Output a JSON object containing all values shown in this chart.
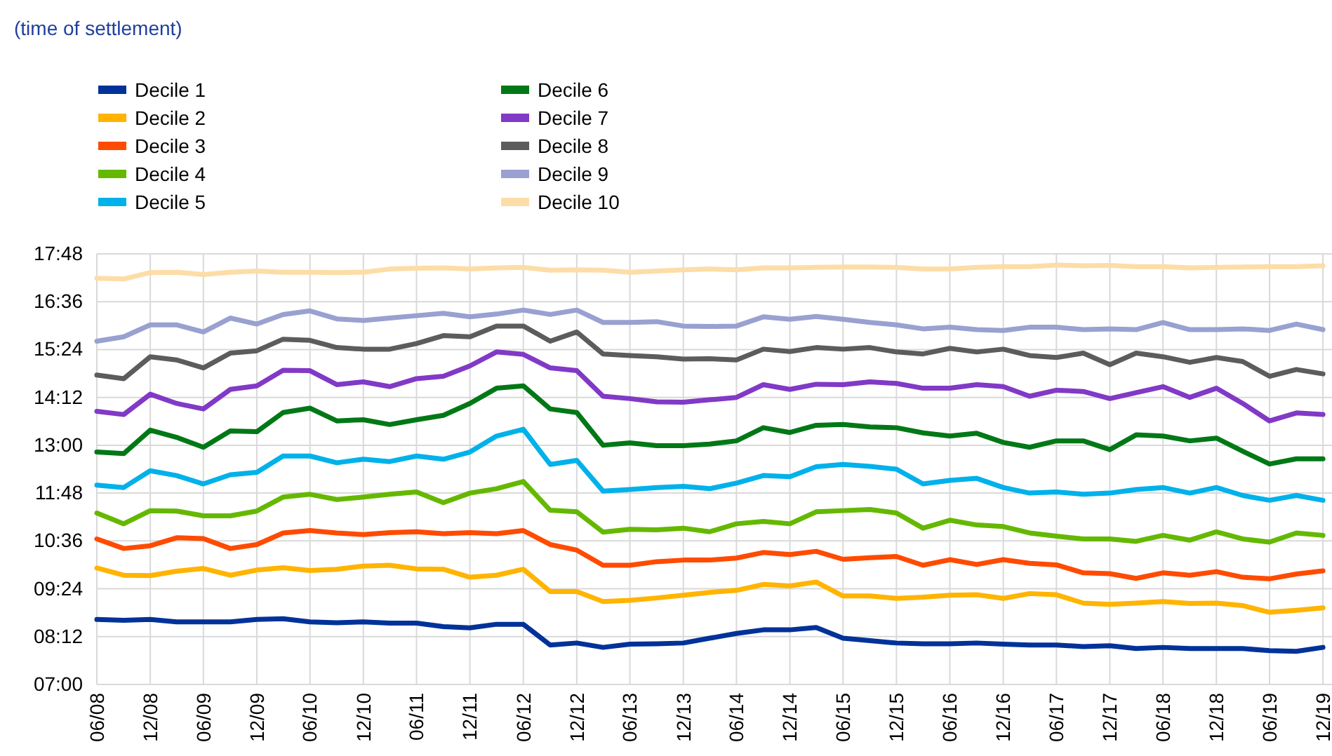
{
  "chart_data": {
    "type": "line",
    "annotations": [
      "(time of settlement)"
    ],
    "x": [
      "2008-06",
      "2008-09",
      "2008-12",
      "2009-03",
      "2009-06",
      "2009-09",
      "2009-12",
      "2010-03",
      "2010-06",
      "2010-09",
      "2010-12",
      "2011-03",
      "2011-06",
      "2011-09",
      "2011-12",
      "2012-03",
      "2012-06",
      "2012-09",
      "2012-12",
      "2013-03",
      "2013-06",
      "2013-09",
      "2013-12",
      "2014-03",
      "2014-06",
      "2014-09",
      "2014-12",
      "2015-03",
      "2015-06",
      "2015-09",
      "2015-12",
      "2016-03",
      "2016-06",
      "2016-09",
      "2016-12",
      "2017-03",
      "2017-06",
      "2017-09",
      "2017-12",
      "2018-03",
      "2018-06",
      "2018-09",
      "2018-12",
      "2019-03",
      "2019-06",
      "2019-09",
      "2019-12"
    ],
    "xlim": [
      "2008-06",
      "2020-01"
    ],
    "xticks": [
      {
        "value": "2008-06",
        "label": "06/08"
      },
      {
        "value": "2008-12",
        "label": "12/08"
      },
      {
        "value": "2009-06",
        "label": "06/09"
      },
      {
        "value": "2009-12",
        "label": "12/09"
      },
      {
        "value": "2010-06",
        "label": "06/10"
      },
      {
        "value": "2010-12",
        "label": "12/10"
      },
      {
        "value": "2011-06",
        "label": "06/11"
      },
      {
        "value": "2011-12",
        "label": "12/11"
      },
      {
        "value": "2012-06",
        "label": "06/12"
      },
      {
        "value": "2012-12",
        "label": "12/12"
      },
      {
        "value": "2013-06",
        "label": "06/13"
      },
      {
        "value": "2013-12",
        "label": "12/13"
      },
      {
        "value": "2014-06",
        "label": "06/14"
      },
      {
        "value": "2014-12",
        "label": "12/14"
      },
      {
        "value": "2015-06",
        "label": "06/15"
      },
      {
        "value": "2015-12",
        "label": "12/15"
      },
      {
        "value": "2016-06",
        "label": "06/16"
      },
      {
        "value": "2016-12",
        "label": "12/16"
      },
      {
        "value": "2017-06",
        "label": "06/17"
      },
      {
        "value": "2017-12",
        "label": "12/17"
      },
      {
        "value": "2018-06",
        "label": "06/18"
      },
      {
        "value": "2018-12",
        "label": "12/18"
      },
      {
        "value": "2019-06",
        "label": "06/19"
      },
      {
        "value": "2019-12",
        "label": "12/19"
      }
    ],
    "ylim": [
      7,
      17.8
    ],
    "yticks": [
      {
        "value": 7,
        "label": "07:00"
      },
      {
        "value": 8.2,
        "label": "08:12"
      },
      {
        "value": 9.4,
        "label": "09:24"
      },
      {
        "value": 10.6,
        "label": "10:36"
      },
      {
        "value": 11.8,
        "label": "11:48"
      },
      {
        "value": 13,
        "label": "13:00"
      },
      {
        "value": 14.2,
        "label": "14:12"
      },
      {
        "value": 15.4,
        "label": "15:24"
      },
      {
        "value": 16.6,
        "label": "16:36"
      },
      {
        "value": 17.8,
        "label": "17:48"
      }
    ],
    "grid": true,
    "legend": "top left",
    "marker": "none",
    "line_style": "solid",
    "series": [
      {
        "name": "Decile 1",
        "color": "#003299",
        "values": [
          8.63,
          8.61,
          8.63,
          8.57,
          8.57,
          8.57,
          8.63,
          8.65,
          8.57,
          8.55,
          8.57,
          8.54,
          8.54,
          8.45,
          8.42,
          8.51,
          8.51,
          7.99,
          8.04,
          7.93,
          8.01,
          8.02,
          8.04,
          8.16,
          8.28,
          8.37,
          8.37,
          8.43,
          8.16,
          8.1,
          8.04,
          8.02,
          8.02,
          8.04,
          8.01,
          7.99,
          7.99,
          7.95,
          7.97,
          7.9,
          7.93,
          7.9,
          7.9,
          7.9,
          7.85,
          7.83,
          7.93
        ]
      },
      {
        "name": "Decile 2",
        "color": "#ffb400",
        "values": [
          9.92,
          9.74,
          9.73,
          9.84,
          9.91,
          9.74,
          9.87,
          9.93,
          9.86,
          9.89,
          9.97,
          9.99,
          9.9,
          9.89,
          9.69,
          9.74,
          9.89,
          9.33,
          9.33,
          9.08,
          9.11,
          9.17,
          9.24,
          9.31,
          9.36,
          9.51,
          9.47,
          9.57,
          9.22,
          9.22,
          9.16,
          9.19,
          9.24,
          9.25,
          9.16,
          9.28,
          9.25,
          9.04,
          9.01,
          9.04,
          9.08,
          9.03,
          9.04,
          8.98,
          8.81,
          8.86,
          8.92
        ]
      },
      {
        "name": "Decile 3",
        "color": "#ff4b00",
        "values": [
          10.65,
          10.41,
          10.48,
          10.68,
          10.66,
          10.41,
          10.51,
          10.8,
          10.86,
          10.8,
          10.76,
          10.81,
          10.83,
          10.78,
          10.81,
          10.78,
          10.86,
          10.51,
          10.37,
          9.99,
          9.99,
          10.08,
          10.12,
          10.12,
          10.17,
          10.31,
          10.26,
          10.34,
          10.14,
          10.18,
          10.21,
          9.99,
          10.13,
          10.01,
          10.13,
          10.04,
          10.0,
          9.8,
          9.78,
          9.66,
          9.8,
          9.74,
          9.83,
          9.69,
          9.65,
          9.77,
          9.85
        ]
      },
      {
        "name": "Decile 4",
        "color": "#65b800",
        "values": [
          11.3,
          11.03,
          11.36,
          11.35,
          11.23,
          11.23,
          11.35,
          11.7,
          11.77,
          11.64,
          11.7,
          11.77,
          11.83,
          11.56,
          11.8,
          11.91,
          12.09,
          11.37,
          11.33,
          10.82,
          10.89,
          10.88,
          10.92,
          10.83,
          11.03,
          11.09,
          11.03,
          11.33,
          11.36,
          11.39,
          11.3,
          10.92,
          11.12,
          11.0,
          10.96,
          10.8,
          10.72,
          10.65,
          10.65,
          10.59,
          10.74,
          10.62,
          10.83,
          10.65,
          10.57,
          10.8,
          10.74
        ]
      },
      {
        "name": "Decile 5",
        "color": "#00b1ea",
        "values": [
          12.0,
          11.94,
          12.36,
          12.24,
          12.03,
          12.26,
          12.32,
          12.73,
          12.73,
          12.56,
          12.65,
          12.59,
          12.73,
          12.65,
          12.83,
          13.23,
          13.4,
          12.52,
          12.62,
          11.85,
          11.89,
          11.94,
          11.97,
          11.91,
          12.05,
          12.24,
          12.21,
          12.46,
          12.52,
          12.47,
          12.4,
          12.03,
          12.12,
          12.17,
          11.94,
          11.8,
          11.83,
          11.77,
          11.8,
          11.89,
          11.94,
          11.8,
          11.94,
          11.74,
          11.62,
          11.74,
          11.62
        ]
      },
      {
        "name": "Decile 6",
        "color": "#007816",
        "values": [
          12.83,
          12.79,
          13.38,
          13.2,
          12.95,
          13.36,
          13.34,
          13.82,
          13.93,
          13.61,
          13.64,
          13.52,
          13.64,
          13.75,
          14.05,
          14.43,
          14.49,
          13.91,
          13.82,
          13.0,
          13.06,
          12.99,
          12.99,
          13.03,
          13.11,
          13.44,
          13.32,
          13.5,
          13.52,
          13.46,
          13.44,
          13.31,
          13.23,
          13.3,
          13.07,
          12.95,
          13.11,
          13.11,
          12.89,
          13.26,
          13.23,
          13.11,
          13.18,
          12.85,
          12.53,
          12.66,
          12.66
        ]
      },
      {
        "name": "Decile 7",
        "color": "#8139c6",
        "values": [
          13.85,
          13.77,
          14.28,
          14.05,
          13.91,
          14.4,
          14.49,
          14.88,
          14.87,
          14.52,
          14.59,
          14.47,
          14.67,
          14.73,
          14.99,
          15.34,
          15.28,
          14.94,
          14.87,
          14.23,
          14.17,
          14.09,
          14.08,
          14.14,
          14.2,
          14.52,
          14.4,
          14.53,
          14.52,
          14.59,
          14.55,
          14.43,
          14.43,
          14.52,
          14.47,
          14.23,
          14.38,
          14.35,
          14.17,
          14.32,
          14.47,
          14.2,
          14.43,
          14.05,
          13.61,
          13.81,
          13.77
        ]
      },
      {
        "name": "Decile 8",
        "color": "#5c5c5c",
        "values": [
          14.76,
          14.67,
          15.22,
          15.14,
          14.94,
          15.31,
          15.37,
          15.66,
          15.63,
          15.45,
          15.41,
          15.41,
          15.55,
          15.75,
          15.72,
          15.99,
          15.99,
          15.61,
          15.84,
          15.29,
          15.25,
          15.22,
          15.16,
          15.17,
          15.14,
          15.41,
          15.35,
          15.45,
          15.41,
          15.45,
          15.34,
          15.29,
          15.43,
          15.34,
          15.41,
          15.25,
          15.2,
          15.31,
          15.02,
          15.31,
          15.22,
          15.08,
          15.2,
          15.1,
          14.73,
          14.9,
          14.79
        ]
      },
      {
        "name": "Decile 9",
        "color": "#98a1d0",
        "values": [
          15.61,
          15.72,
          16.02,
          16.02,
          15.84,
          16.19,
          16.04,
          16.28,
          16.37,
          16.17,
          16.13,
          16.19,
          16.25,
          16.31,
          16.22,
          16.29,
          16.39,
          16.28,
          16.39,
          16.08,
          16.08,
          16.1,
          15.99,
          15.98,
          15.99,
          16.22,
          16.16,
          16.23,
          16.16,
          16.08,
          16.02,
          15.92,
          15.96,
          15.9,
          15.88,
          15.96,
          15.96,
          15.9,
          15.92,
          15.9,
          16.08,
          15.9,
          15.9,
          15.92,
          15.88,
          16.04,
          15.9
        ]
      },
      {
        "name": "Decile 10",
        "color": "#fddda7",
        "values": [
          17.19,
          17.17,
          17.33,
          17.34,
          17.28,
          17.34,
          17.37,
          17.34,
          17.34,
          17.33,
          17.34,
          17.42,
          17.44,
          17.45,
          17.42,
          17.45,
          17.46,
          17.39,
          17.4,
          17.39,
          17.34,
          17.37,
          17.4,
          17.42,
          17.4,
          17.45,
          17.45,
          17.46,
          17.47,
          17.47,
          17.46,
          17.42,
          17.42,
          17.46,
          17.48,
          17.48,
          17.52,
          17.5,
          17.51,
          17.48,
          17.48,
          17.45,
          17.46,
          17.47,
          17.48,
          17.48,
          17.5
        ]
      }
    ]
  }
}
